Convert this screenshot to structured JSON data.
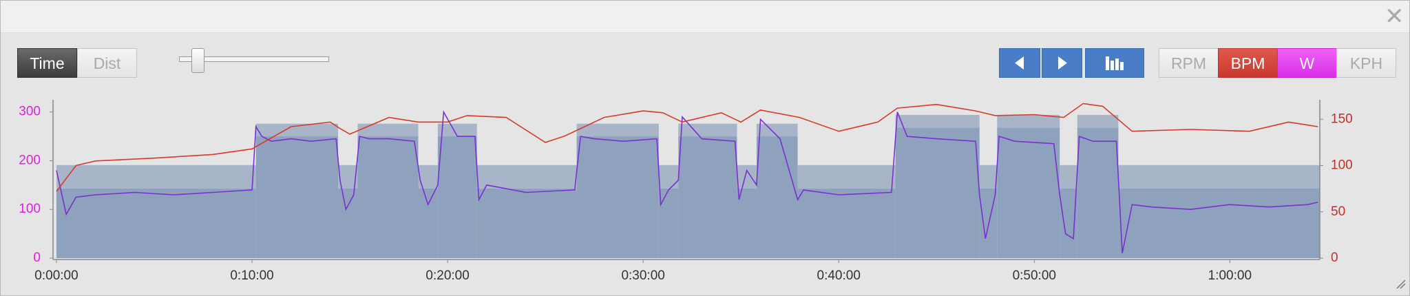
{
  "toolbar": {
    "mode_buttons": [
      "Time",
      "Dist"
    ],
    "active_mode": 0,
    "metric_buttons": [
      "RPM",
      "BPM",
      "W",
      "KPH"
    ],
    "active_metrics": [
      1,
      2
    ]
  },
  "chart_data": {
    "type": "line",
    "xlim": [
      0,
      64.6
    ],
    "ylim": [
      0,
      325
    ],
    "y2lim": [
      0,
      171
    ],
    "xticks": [
      {
        "value": 0,
        "label": "0:00:00"
      },
      {
        "value": 10,
        "label": "0:10:00"
      },
      {
        "value": 20,
        "label": "0:20:00"
      },
      {
        "value": 30,
        "label": "0:30:00"
      },
      {
        "value": 40,
        "label": "0:40:00"
      },
      {
        "value": 50,
        "label": "0:50:00"
      },
      {
        "value": 60,
        "label": "1:00:00"
      }
    ],
    "yticks": [
      0,
      100,
      200,
      300
    ],
    "y2ticks": [
      0,
      50,
      100,
      150
    ],
    "target_colors": {
      "high": "#a8b4c8",
      "low": "#8ea2be"
    },
    "target_intervals": [
      {
        "start": 0,
        "end": 10.2,
        "low": 143,
        "high": 191
      },
      {
        "start": 10.2,
        "end": 14.4,
        "low": 250,
        "high": 276
      },
      {
        "start": 14.4,
        "end": 15.4,
        "low": 143,
        "high": 191
      },
      {
        "start": 15.4,
        "end": 18.5,
        "low": 250,
        "high": 276
      },
      {
        "start": 18.5,
        "end": 19.5,
        "low": 143,
        "high": 191
      },
      {
        "start": 19.5,
        "end": 21.5,
        "low": 250,
        "high": 276
      },
      {
        "start": 21.5,
        "end": 26.6,
        "low": 143,
        "high": 191
      },
      {
        "start": 26.6,
        "end": 30.8,
        "low": 250,
        "high": 276
      },
      {
        "start": 30.8,
        "end": 31.8,
        "low": 143,
        "high": 191
      },
      {
        "start": 31.8,
        "end": 34.8,
        "low": 250,
        "high": 276
      },
      {
        "start": 34.8,
        "end": 35.8,
        "low": 143,
        "high": 191
      },
      {
        "start": 35.8,
        "end": 37.9,
        "low": 250,
        "high": 276
      },
      {
        "start": 37.9,
        "end": 42.9,
        "low": 143,
        "high": 191
      },
      {
        "start": 42.9,
        "end": 47.2,
        "low": 268,
        "high": 294
      },
      {
        "start": 47.2,
        "end": 48.1,
        "low": 143,
        "high": 191
      },
      {
        "start": 48.1,
        "end": 51.3,
        "low": 268,
        "high": 294
      },
      {
        "start": 51.3,
        "end": 52.2,
        "low": 143,
        "high": 191
      },
      {
        "start": 52.2,
        "end": 54.3,
        "low": 268,
        "high": 294
      },
      {
        "start": 54.3,
        "end": 64.6,
        "low": 143,
        "high": 191
      }
    ],
    "series": [
      {
        "name": "W",
        "color": "#7a2fd2",
        "axis": "y",
        "x": [
          0,
          0.5,
          1,
          2,
          4,
          6,
          8,
          10,
          10.2,
          10.5,
          11,
          12,
          13,
          14.3,
          14.5,
          14.8,
          15.2,
          15.5,
          16,
          17,
          18.3,
          18.6,
          19,
          19.5,
          19.8,
          20.5,
          21.4,
          21.6,
          22,
          24,
          26.5,
          26.8,
          27.5,
          29,
          30.7,
          30.9,
          31.3,
          31.8,
          32,
          33,
          34.7,
          34.9,
          35.3,
          35.8,
          36,
          37,
          37.9,
          38.2,
          40,
          42.7,
          43,
          43.5,
          45,
          47,
          47.2,
          47.5,
          48,
          48.2,
          49,
          51,
          51.3,
          51.6,
          52,
          52.3,
          53,
          54.2,
          54.5,
          55,
          56,
          58,
          60,
          62,
          64,
          64.5
        ],
        "values": [
          180,
          90,
          125,
          130,
          135,
          130,
          135,
          140,
          270,
          250,
          240,
          245,
          240,
          245,
          160,
          100,
          130,
          250,
          245,
          245,
          240,
          160,
          110,
          150,
          300,
          250,
          250,
          120,
          150,
          135,
          140,
          250,
          245,
          240,
          245,
          110,
          140,
          160,
          290,
          245,
          240,
          120,
          180,
          150,
          285,
          245,
          120,
          140,
          130,
          135,
          300,
          250,
          245,
          240,
          130,
          40,
          130,
          250,
          240,
          235,
          130,
          50,
          40,
          250,
          240,
          240,
          10,
          110,
          105,
          100,
          110,
          105,
          110,
          115
        ]
      },
      {
        "name": "BPM",
        "color": "#d63a2a",
        "axis": "y2",
        "x": [
          0,
          1,
          2,
          5,
          8,
          10,
          11,
          12,
          14,
          14.5,
          15,
          17,
          18.5,
          20,
          21,
          23,
          25,
          26,
          28,
          30,
          31,
          32,
          34,
          35,
          36,
          38,
          40,
          42,
          43,
          45,
          47,
          48,
          50,
          51.5,
          52.5,
          53.5,
          55,
          58,
          61,
          63,
          64.5
        ],
        "values": [
          72,
          100,
          105,
          108,
          112,
          118,
          130,
          142,
          147,
          140,
          134,
          152,
          147,
          147,
          154,
          152,
          125,
          132,
          152,
          159,
          157,
          147,
          157,
          147,
          160,
          152,
          137,
          147,
          162,
          166,
          159,
          154,
          155,
          152,
          167,
          164,
          137,
          139,
          137,
          147,
          142
        ]
      }
    ]
  }
}
